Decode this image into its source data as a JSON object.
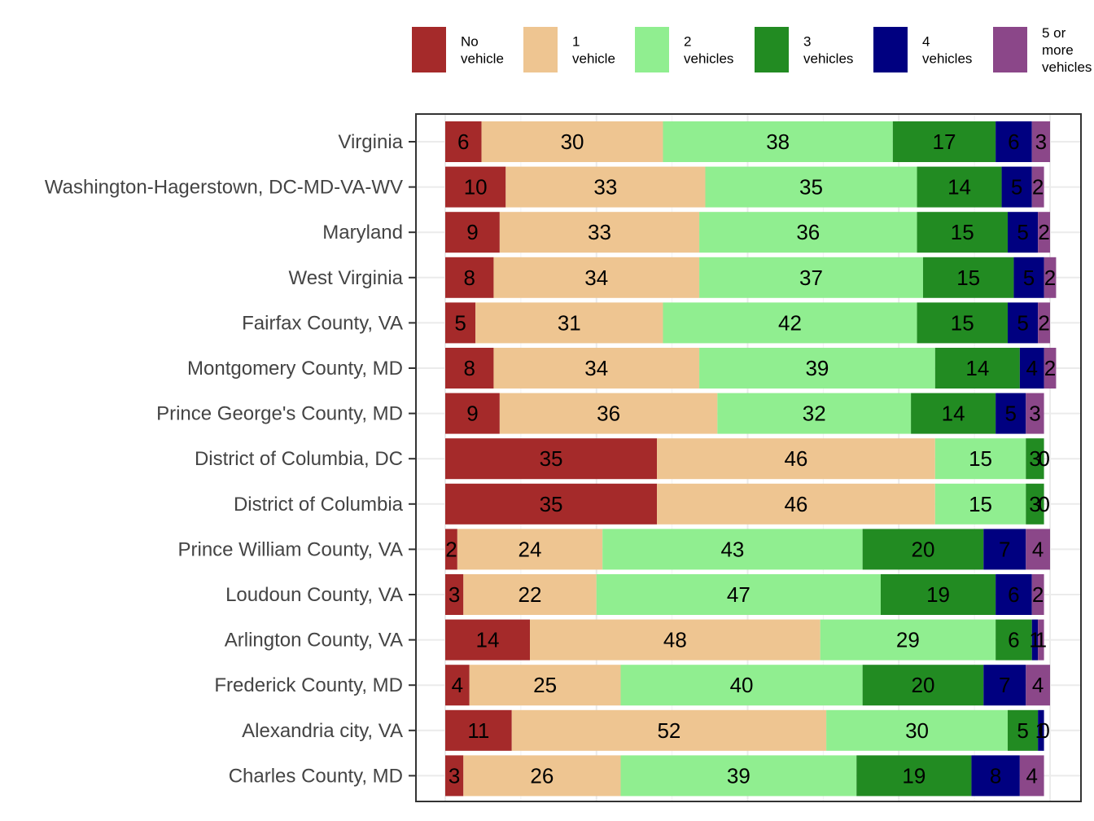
{
  "chart_data": {
    "type": "bar",
    "orientation": "horizontal",
    "stacked": true,
    "title": "",
    "xlabel": "",
    "ylabel": "",
    "xlim": [
      0,
      100
    ],
    "grid": true,
    "legend_position": "top",
    "categories": [
      "Virginia",
      "Washington-Hagerstown, DC-MD-VA-WV",
      "Maryland",
      "West Virginia",
      "Fairfax County, VA",
      "Montgomery County, MD",
      "Prince George's County, MD",
      "District of Columbia, DC",
      "District of Columbia",
      "Prince William County, VA",
      "Loudoun County, VA",
      "Arlington County, VA",
      "Frederick County, MD",
      "Alexandria city, VA",
      "Charles County, MD"
    ],
    "series": [
      {
        "name": "No vehicle",
        "legend_lines": [
          "No",
          "vehicle"
        ],
        "color": "#A52A2A",
        "values": [
          6,
          10,
          9,
          8,
          5,
          8,
          9,
          35,
          35,
          2,
          3,
          14,
          4,
          11,
          3
        ]
      },
      {
        "name": "1 vehicle",
        "legend_lines": [
          "1",
          "vehicle"
        ],
        "color": "#EEC591",
        "values": [
          30,
          33,
          33,
          34,
          31,
          34,
          36,
          46,
          46,
          24,
          22,
          48,
          25,
          52,
          26
        ]
      },
      {
        "name": "2 vehicles",
        "legend_lines": [
          "2",
          "vehicles"
        ],
        "color": "#90EE90",
        "values": [
          38,
          35,
          36,
          37,
          42,
          39,
          32,
          15,
          15,
          43,
          47,
          29,
          40,
          30,
          39
        ]
      },
      {
        "name": "3 vehicles",
        "legend_lines": [
          "3",
          "vehicles"
        ],
        "color": "#228B22",
        "values": [
          17,
          14,
          15,
          15,
          15,
          14,
          14,
          3,
          3,
          20,
          19,
          6,
          20,
          5,
          19
        ]
      },
      {
        "name": "4 vehicles",
        "legend_lines": [
          "4",
          "vehicles"
        ],
        "color": "#000080",
        "values": [
          6,
          5,
          5,
          5,
          5,
          4,
          5,
          0,
          0,
          7,
          6,
          1,
          7,
          1,
          8
        ]
      },
      {
        "name": "5 or more vehicles",
        "legend_lines": [
          "5 or",
          "more",
          "vehicles"
        ],
        "color": "#8B4789",
        "values": [
          3,
          2,
          2,
          2,
          2,
          2,
          3,
          0,
          0,
          4,
          2,
          1,
          4,
          0,
          4
        ]
      }
    ]
  }
}
